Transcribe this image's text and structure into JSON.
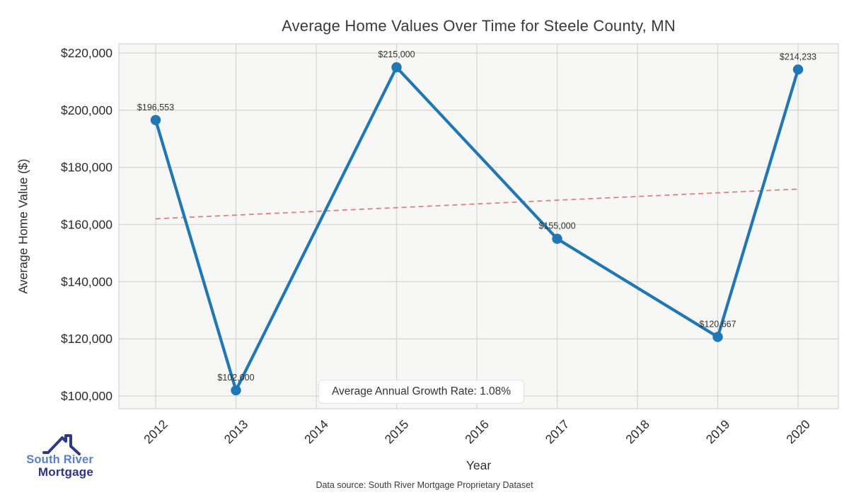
{
  "chart_data": {
    "type": "line",
    "title": "Average Home Values Over Time for Steele County, MN",
    "xlabel": "Year",
    "ylabel": "Average Home Value ($)",
    "x_ticks": [
      2012,
      2013,
      2014,
      2015,
      2016,
      2017,
      2018,
      2019,
      2020
    ],
    "y_ticks": [
      100000,
      120000,
      140000,
      160000,
      180000,
      200000,
      220000
    ],
    "ylim": [
      95500,
      223200
    ],
    "xlim": [
      2011.55,
      2020.45
    ],
    "grid": true,
    "legend": "none",
    "series": [
      {
        "name": "Average Home Value",
        "color": "#1f77b4",
        "points": [
          {
            "x": 2012,
            "y": 196553
          },
          {
            "x": 2013,
            "y": 102000
          },
          {
            "x": 2015,
            "y": 215000
          },
          {
            "x": 2017,
            "y": 155000
          },
          {
            "x": 2019,
            "y": 120667
          },
          {
            "x": 2020,
            "y": 214233
          }
        ]
      }
    ],
    "trend_line": {
      "style": "dashed",
      "color": "#db8184",
      "start": {
        "x": 2012,
        "y": 162000
      },
      "end": {
        "x": 2020,
        "y": 172400
      }
    },
    "annotation": "Average Annual Growth Rate: 1.08%",
    "colors": {
      "plot_background": "#f7f7f6",
      "grid_line": "#d6d6d6",
      "tick_text": "#2b2b2b",
      "point_label_text": "#333333"
    }
  },
  "footer": {
    "source": "Data source: South River Mortgage Proprietary Dataset"
  },
  "logo": {
    "line1": "South River",
    "line2": "Mortgage",
    "icon": "roof-icon",
    "icon_color": "#2c3a85",
    "line1_color": "#5b7fc5",
    "line2_color": "#2f3583"
  }
}
